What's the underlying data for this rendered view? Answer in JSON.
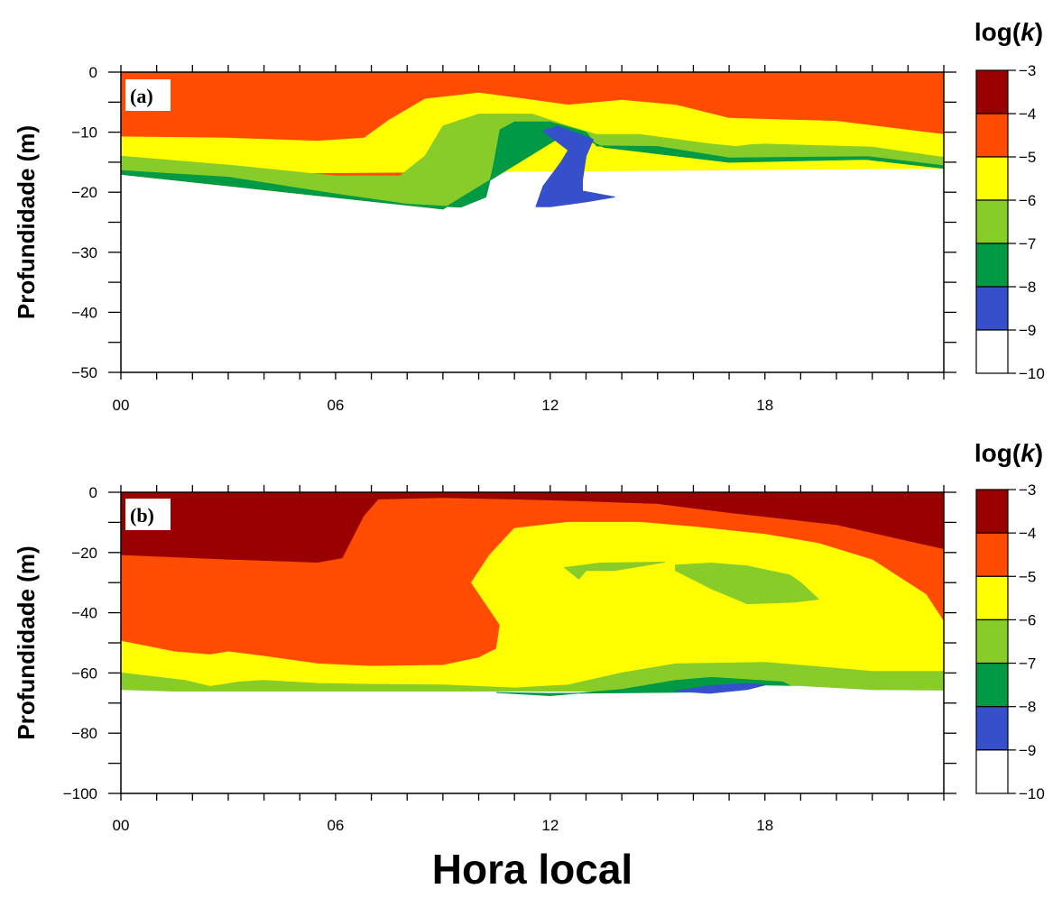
{
  "figure": {
    "xlabel": "Hora local"
  },
  "colors": {
    "levels": [
      "#990000",
      "#ff4c00",
      "#ffff00",
      "#88cc2a",
      "#009944",
      "#3650cc",
      "#ffffff"
    ],
    "axis": "#000000"
  },
  "chart_data": [
    {
      "type": "heatmap",
      "panel_label": "(a)",
      "ylabel": "Profundidade (m)",
      "colorbar_title": "log(k)",
      "colorbar_ticks": [
        "−3",
        "−4",
        "−5",
        "−6",
        "−7",
        "−8",
        "−9",
        "−10"
      ],
      "colorbar_levels": [
        -3,
        -4,
        -5,
        -6,
        -7,
        -8,
        -9,
        -10
      ],
      "xlim": [
        0,
        23
      ],
      "ylim": [
        -50,
        0
      ],
      "xticks": [
        0,
        6,
        12,
        18
      ],
      "xticklabels": [
        "00",
        "06",
        "12",
        "18"
      ],
      "yticks": [
        0,
        -10,
        -20,
        -30,
        -40,
        -50
      ],
      "yticklabels": [
        "0",
        "−10",
        "−20",
        "−30",
        "−40",
        "−50"
      ],
      "grid": false,
      "contours": [
        {
          "range": "-4 to -5",
          "color_index": 1,
          "points": [
            [
              0,
              0
            ],
            [
              23,
              0
            ],
            [
              23,
              -16
            ],
            [
              20.8,
              -14.5
            ],
            [
              17,
              -15
            ],
            [
              13.5,
              -12.5
            ],
            [
              12.5,
              -10
            ],
            [
              9,
              -22.8
            ],
            [
              0,
              -17
            ]
          ]
        },
        {
          "range": "-5 to -6",
          "color_index": 2,
          "points": [
            [
              0,
              -10.8
            ],
            [
              3,
              -11
            ],
            [
              5.5,
              -11.5
            ],
            [
              6.8,
              -11
            ],
            [
              7.5,
              -8
            ],
            [
              8.5,
              -4.5
            ],
            [
              10,
              -3.5
            ],
            [
              11.3,
              -4.5
            ],
            [
              12.5,
              -5.5
            ],
            [
              14,
              -4.7
            ],
            [
              15.5,
              -5.5
            ],
            [
              17,
              -7.7
            ],
            [
              20,
              -8.2
            ],
            [
              23,
              -10.4
            ],
            [
              23,
              -16
            ],
            [
              0,
              -17
            ]
          ]
        },
        {
          "range": "-6 to -7",
          "color_index": 3,
          "points": [
            [
              0,
              -14
            ],
            [
              3,
              -15.5
            ],
            [
              6,
              -17.3
            ],
            [
              7.8,
              -17.3
            ],
            [
              8.5,
              -14
            ],
            [
              9,
              -9
            ],
            [
              10,
              -7
            ],
            [
              11.5,
              -7
            ],
            [
              12.5,
              -9
            ],
            [
              13.3,
              -10.4
            ],
            [
              14.5,
              -10.4
            ],
            [
              16.5,
              -12
            ],
            [
              17.2,
              -12.4
            ],
            [
              17.6,
              -12.1
            ],
            [
              18,
              -12
            ],
            [
              21,
              -12.5
            ],
            [
              23,
              -14.2
            ],
            [
              23,
              -16
            ],
            [
              20.8,
              -14.5
            ],
            [
              17,
              -15
            ],
            [
              13.5,
              -12.5
            ],
            [
              12.5,
              -10
            ],
            [
              9,
              -22.8
            ],
            [
              0,
              -17
            ]
          ]
        },
        {
          "range": "-7 to -8",
          "color_index": 4,
          "points": [
            [
              0,
              -16.4
            ],
            [
              3,
              -17.5
            ],
            [
              6,
              -20.3
            ],
            [
              8,
              -22
            ],
            [
              9.5,
              -22.5
            ],
            [
              10.2,
              -20.8
            ],
            [
              10.4,
              -16
            ],
            [
              10.6,
              -9.6
            ],
            [
              11,
              -8.3
            ],
            [
              12,
              -8.3
            ],
            [
              13,
              -10
            ],
            [
              13.3,
              -12.3
            ],
            [
              15,
              -12.4
            ],
            [
              17,
              -14.3
            ],
            [
              20.9,
              -14.1
            ],
            [
              23,
              -15.6
            ],
            [
              23,
              -16
            ],
            [
              20.8,
              -14.5
            ],
            [
              17,
              -15
            ],
            [
              13.5,
              -12.5
            ],
            [
              12.5,
              -10
            ],
            [
              9,
              -22.8
            ],
            [
              0,
              -17
            ]
          ]
        },
        {
          "range": "-8 to -9",
          "color_index": 5,
          "points": [
            [
              11.8,
              -9.8
            ],
            [
              12.2,
              -9
            ],
            [
              13.2,
              -11.2
            ],
            [
              13,
              -14
            ],
            [
              12.9,
              -18
            ],
            [
              12.9,
              -19.8
            ],
            [
              13.8,
              -20.8
            ],
            [
              13,
              -21.6
            ],
            [
              12,
              -22.4
            ],
            [
              11.6,
              -22.4
            ],
            [
              11.8,
              -19
            ],
            [
              12.3,
              -15
            ],
            [
              12.5,
              -13
            ]
          ]
        }
      ]
    },
    {
      "type": "heatmap",
      "panel_label": "(b)",
      "ylabel": "Profundidade (m)",
      "colorbar_title": "log(k)",
      "colorbar_ticks": [
        "−3",
        "−4",
        "−5",
        "−6",
        "−7",
        "−8",
        "−9",
        "−10"
      ],
      "colorbar_levels": [
        -3,
        -4,
        -5,
        -6,
        -7,
        -8,
        -9,
        -10
      ],
      "xlim": [
        0,
        23
      ],
      "ylim": [
        -100,
        0
      ],
      "xticks": [
        0,
        6,
        12,
        18
      ],
      "xticklabels": [
        "00",
        "06",
        "12",
        "18"
      ],
      "yticks": [
        0,
        -20,
        -40,
        -60,
        -80,
        -100
      ],
      "yticklabels": [
        "0",
        "−20",
        "−40",
        "−60",
        "−80",
        "−100"
      ],
      "grid": false,
      "contours": [
        {
          "range": "-3 to -4",
          "color_index": 0,
          "points": [
            [
              0,
              0
            ],
            [
              23,
              0
            ],
            [
              23,
              -66
            ],
            [
              0,
              -66
            ]
          ]
        },
        {
          "range": "-4 to -5",
          "color_index": 1,
          "points": [
            [
              0,
              -21
            ],
            [
              3,
              -22.5
            ],
            [
              5.5,
              -23.5
            ],
            [
              6.2,
              -22
            ],
            [
              6.8,
              -8
            ],
            [
              7.2,
              -2.5
            ],
            [
              9,
              -2
            ],
            [
              11,
              -2.5
            ],
            [
              12.5,
              -3
            ],
            [
              15,
              -4
            ],
            [
              17,
              -7
            ],
            [
              20,
              -11
            ],
            [
              23,
              -19
            ],
            [
              23,
              -66
            ],
            [
              0,
              -66
            ]
          ]
        },
        {
          "range": "-5 to -6",
          "color_index": 2,
          "points": [
            [
              0,
              -49.5
            ],
            [
              1.5,
              -53
            ],
            [
              2.5,
              -54
            ],
            [
              3,
              -53
            ],
            [
              4,
              -54.5
            ],
            [
              5.5,
              -57
            ],
            [
              7,
              -57.8
            ],
            [
              9,
              -57.5
            ],
            [
              10,
              -55
            ],
            [
              10.5,
              -52
            ],
            [
              10.6,
              -44
            ],
            [
              10.2,
              -37
            ],
            [
              9.8,
              -30
            ],
            [
              10.3,
              -21
            ],
            [
              11,
              -12
            ],
            [
              12.5,
              -10
            ],
            [
              14.5,
              -10
            ],
            [
              16,
              -11.5
            ],
            [
              18,
              -14
            ],
            [
              19.5,
              -17
            ],
            [
              21,
              -22.5
            ],
            [
              22.5,
              -34
            ],
            [
              23,
              -43
            ],
            [
              23,
              -66
            ],
            [
              0,
              -66
            ]
          ]
        },
        {
          "range": "-6 to -7",
          "color_index": 3,
          "points": [
            [
              0,
              -60
            ],
            [
              1.8,
              -62.5
            ],
            [
              2.5,
              -64.5
            ],
            [
              3.3,
              -63
            ],
            [
              4,
              -62.5
            ],
            [
              5.5,
              -63.5
            ],
            [
              7,
              -63.8
            ],
            [
              9,
              -64
            ],
            [
              11,
              -65
            ],
            [
              12.5,
              -64
            ],
            [
              14,
              -60
            ],
            [
              15.5,
              -57
            ],
            [
              18,
              -56.5
            ],
            [
              21,
              -59.5
            ],
            [
              23,
              -59.5
            ],
            [
              23,
              -66
            ],
            [
              0,
              -66
            ]
          ]
        },
        {
          "range": "-6 to -7",
          "color_index": 3,
          "points": [
            [
              12.4,
              -25
            ],
            [
              13.4,
              -23.5
            ],
            [
              15.2,
              -23.2
            ],
            [
              13.8,
              -26
            ],
            [
              13,
              -26
            ],
            [
              12.8,
              -28.8
            ]
          ]
        },
        {
          "range": "-6 to -7",
          "color_index": 3,
          "points": [
            [
              15.5,
              -24.2
            ],
            [
              16.5,
              -23.5
            ],
            [
              17.5,
              -24.5
            ],
            [
              18.7,
              -27.5
            ],
            [
              19,
              -30
            ],
            [
              19.5,
              -35.5
            ],
            [
              18.8,
              -36.5
            ],
            [
              17.5,
              -37
            ],
            [
              16.5,
              -32
            ],
            [
              15.5,
              -26
            ]
          ]
        },
        {
          "range": "-7 to -8",
          "color_index": 4,
          "points": [
            [
              10.5,
              -66.5
            ],
            [
              12,
              -67.5
            ],
            [
              14,
              -65.5
            ],
            [
              15.5,
              -62.5
            ],
            [
              16.5,
              -61.5
            ],
            [
              18.5,
              -63
            ],
            [
              19,
              -66
            ],
            [
              12,
              -66.8
            ]
          ]
        },
        {
          "range": "-8 to -9",
          "color_index": 5,
          "points": [
            [
              15.5,
              -66
            ],
            [
              16.5,
              -64.2
            ],
            [
              17.5,
              -63.5
            ],
            [
              18,
              -64
            ],
            [
              17.3,
              -66.8
            ],
            [
              16.5,
              -66.8
            ]
          ]
        },
        {
          "range": "below -10 (deep water)",
          "color_index": 6,
          "points": [
            [
              0,
              -100
            ],
            [
              23,
              -100
            ],
            [
              23,
              -66
            ],
            [
              21,
              -65.8
            ],
            [
              19,
              -64.5
            ],
            [
              18,
              -64.3
            ],
            [
              17.5,
              -65.8
            ],
            [
              16.5,
              -67
            ],
            [
              15,
              -67.5
            ],
            [
              12.5,
              -68.8
            ],
            [
              10.5,
              -68.2
            ],
            [
              6,
              -67
            ],
            [
              4,
              -66.5
            ],
            [
              2,
              -66.5
            ],
            [
              0,
              -65.8
            ]
          ]
        }
      ]
    }
  ]
}
